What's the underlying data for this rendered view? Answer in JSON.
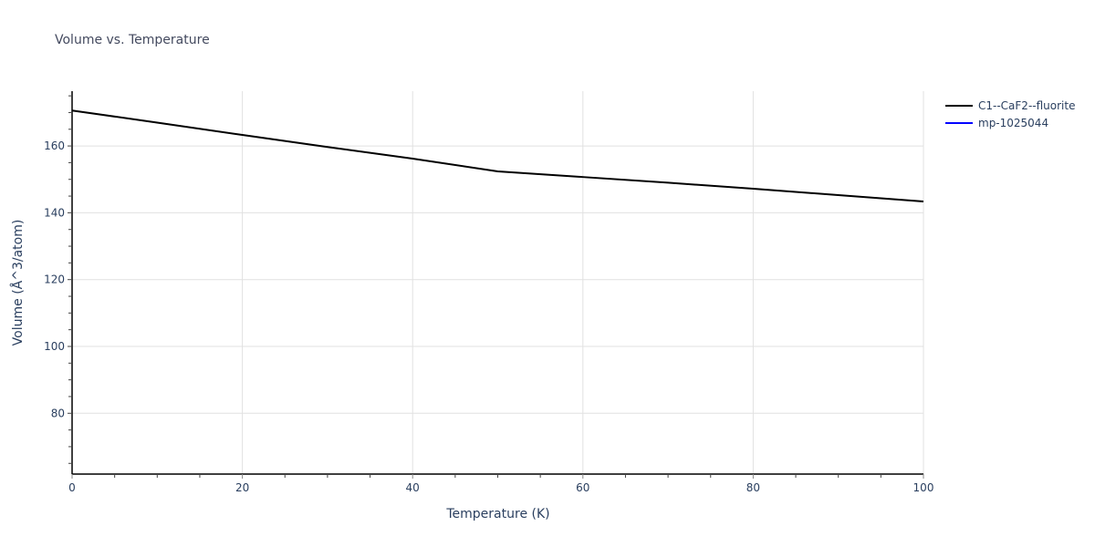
{
  "chart_data": {
    "type": "line",
    "title": "Volume vs. Temperature",
    "xlabel": "Temperature (K)",
    "ylabel": "Volume (Å^3/atom)",
    "xlim": [
      0,
      100
    ],
    "ylim": [
      61.8,
      176.4
    ],
    "x_ticks": [
      0,
      20,
      40,
      60,
      80,
      100
    ],
    "y_ticks": [
      80,
      100,
      120,
      140,
      160
    ],
    "grid": true,
    "legend_position": "right",
    "series": [
      {
        "name": "C1--CaF2--fluorite",
        "color": "#000000",
        "x": [
          0,
          10,
          20,
          30,
          40,
          50,
          60,
          70,
          80,
          90,
          100
        ],
        "y": [
          170.6,
          167.0,
          163.3,
          159.7,
          156.2,
          152.4,
          150.7,
          149.0,
          147.2,
          145.3,
          143.4
        ]
      },
      {
        "name": "mp-1025044",
        "color": "#0000ff",
        "x": [],
        "y": []
      }
    ]
  },
  "title": "Volume vs. Temperature",
  "x_axis": {
    "title": "Temperature (K)",
    "ticks": [
      "0",
      "20",
      "40",
      "60",
      "80",
      "100"
    ]
  },
  "y_axis": {
    "title": "Volume (Å^3/atom)",
    "ticks": [
      "80",
      "100",
      "120",
      "140",
      "160"
    ]
  },
  "legend": [
    {
      "label": "C1--CaF2--fluorite",
      "color": "#000000"
    },
    {
      "label": "mp-1025044",
      "color": "#0000ff"
    }
  ]
}
